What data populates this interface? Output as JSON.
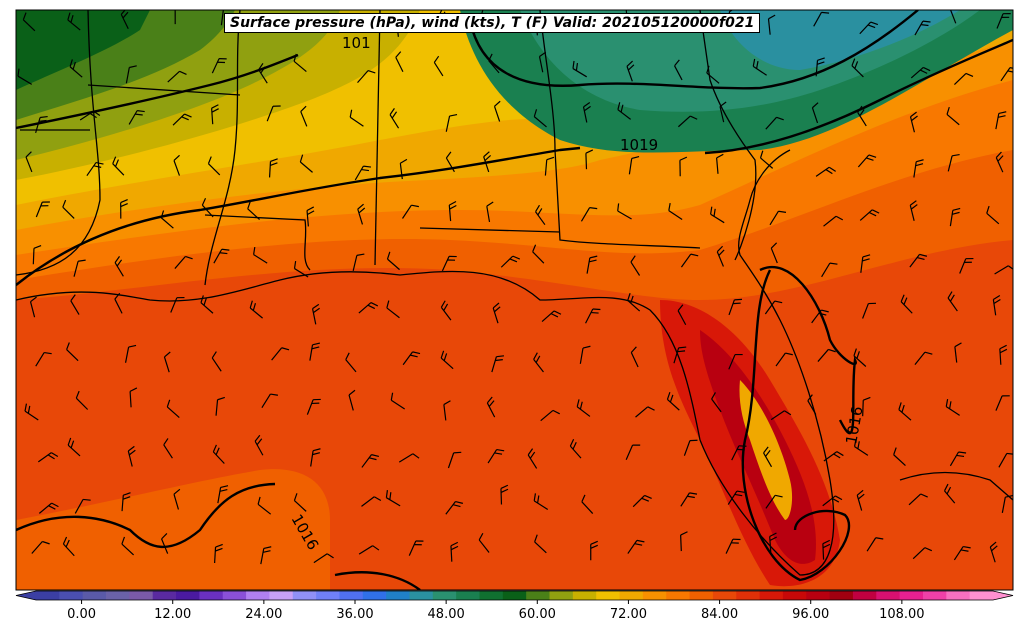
{
  "title": "Surface pressure (hPa), wind (kts), T (F) Valid: 202105120000f021",
  "contours": [
    {
      "label": "1019"
    },
    {
      "label": "1016"
    },
    {
      "label": "1016"
    },
    {
      "label": "101"
    }
  ],
  "colorbar": {
    "ticks": [
      "0.00",
      "12.00",
      "24.00",
      "36.00",
      "48.00",
      "60.00",
      "72.00",
      "84.00",
      "96.00",
      "108.00"
    ],
    "min": -6,
    "max": 120,
    "colors": [
      "#3b3fa3",
      "#4a4fb0",
      "#5a5aa8",
      "#6a62a8",
      "#7a5aa8",
      "#5a2aa0",
      "#4a1aa0",
      "#6a30c0",
      "#8a50d8",
      "#b080f0",
      "#c8a0f8",
      "#9090f8",
      "#7080f8",
      "#5070f0",
      "#3070e8",
      "#2080c8",
      "#2a90a0",
      "#2a9070",
      "#1a8050",
      "#107030",
      "#0a6018",
      "#4a8018",
      "#90a010",
      "#c8b000",
      "#f0c000",
      "#f0a800",
      "#f89000",
      "#f87800",
      "#f06000",
      "#e84808",
      "#e03008",
      "#d81808",
      "#c80808",
      "#b80010",
      "#a00010",
      "#c00040",
      "#d81070",
      "#e82090",
      "#f040a8",
      "#f870c0",
      "#ff90d0"
    ]
  }
}
